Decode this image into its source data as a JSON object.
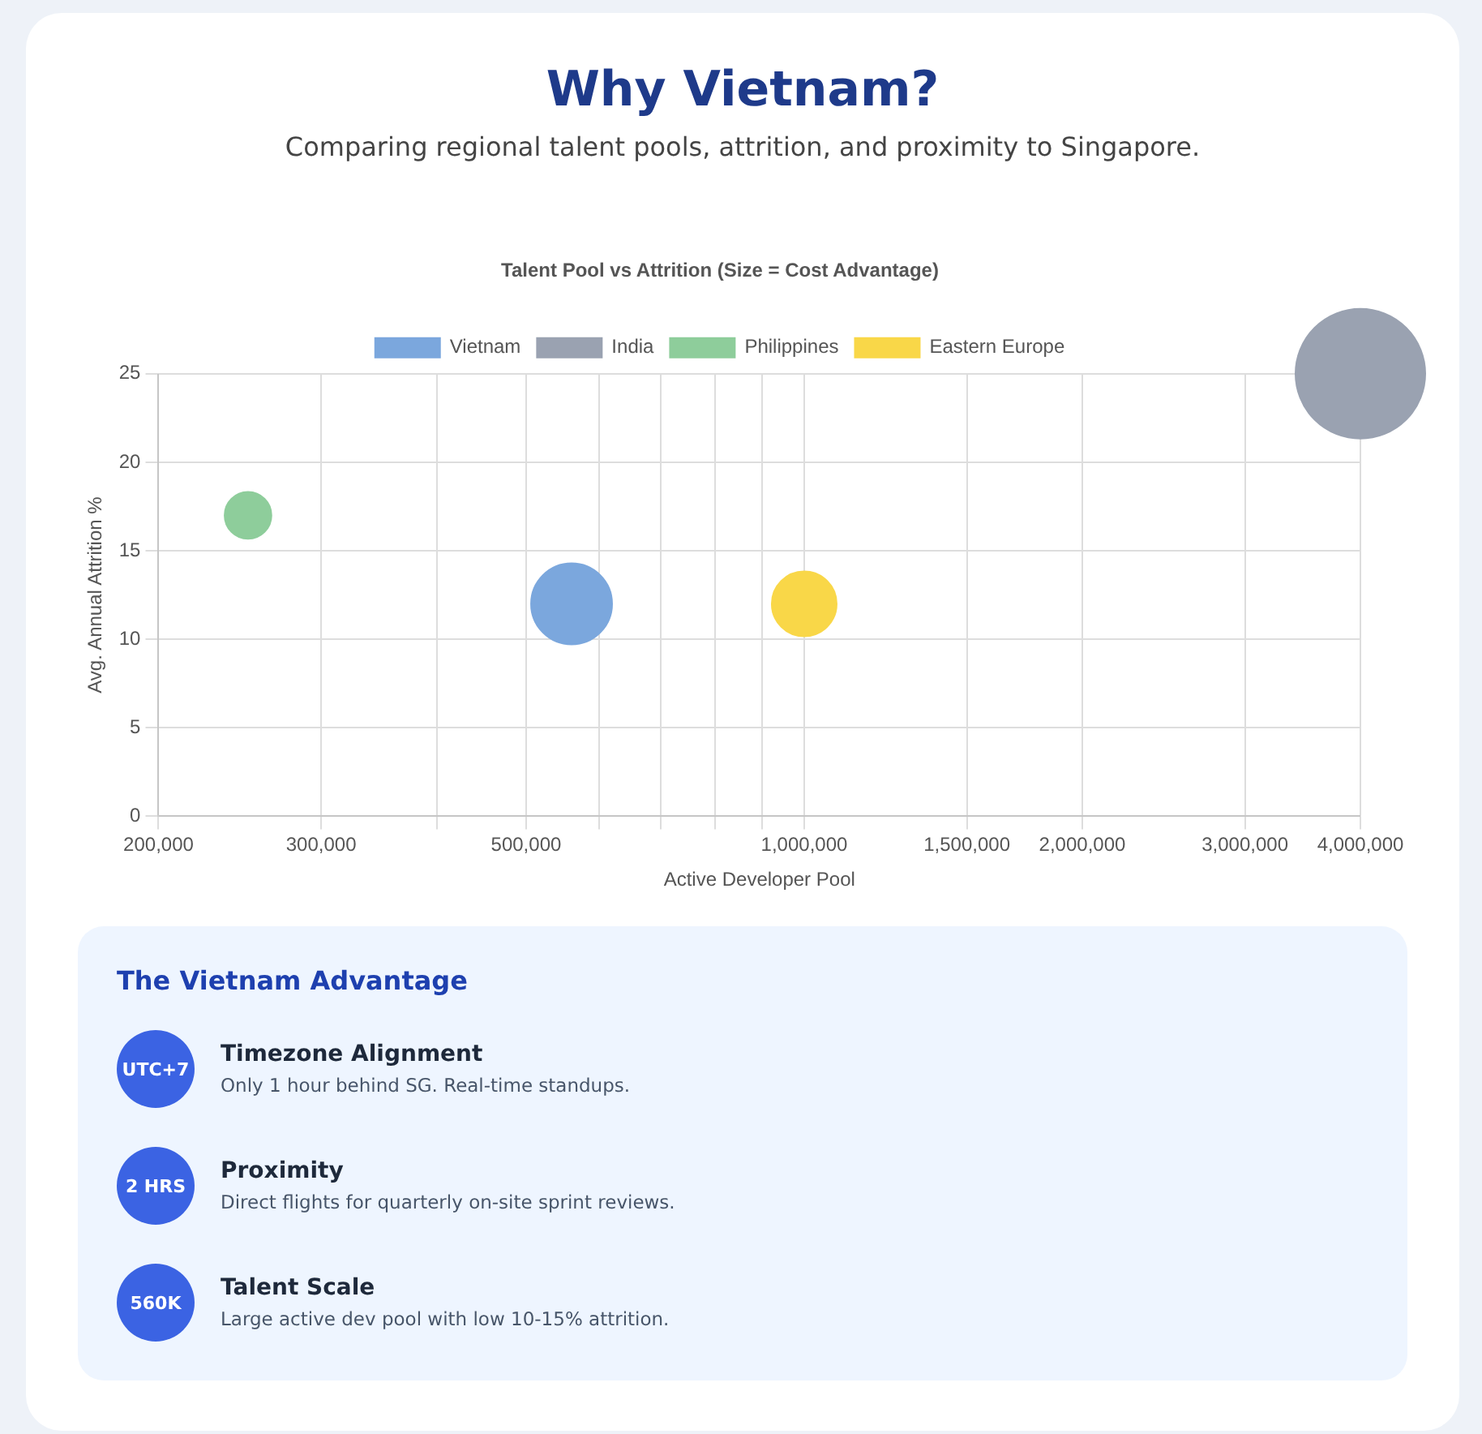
{
  "chart_data": [
    {
      "type": "other",
      "title": "Why Vietnam?",
      "subtitle": "Comparing regional talent pools, attrition, and proximity to Singapore."
    },
    {
      "type": "bubble",
      "title": "Talent Pool vs Attrition (Size = Cost Advantage)",
      "xlabel": "Active Developer Pool",
      "ylabel": "Avg. Annual Attrition %",
      "log": "x",
      "legend": "top",
      "grid": true,
      "xlim": [
        200000,
        4000000
      ],
      "xticks": [
        {
          "value": 200000,
          "label": "200,000"
        },
        {
          "value": 300000,
          "label": "300,000"
        },
        {
          "value": 400000,
          "label": null
        },
        {
          "value": 500000,
          "label": "500,000"
        },
        {
          "value": 600000,
          "label": null
        },
        {
          "value": 700000,
          "label": null
        },
        {
          "value": 800000,
          "label": null
        },
        {
          "value": 900000,
          "label": null
        },
        {
          "value": 1000000,
          "label": "1,000,000"
        },
        {
          "value": 1500000,
          "label": "1,500,000"
        },
        {
          "value": 2000000,
          "label": "2,000,000"
        },
        {
          "value": 3000000,
          "label": "3,000,000"
        },
        {
          "value": 4000000,
          "label": "4,000,000"
        }
      ],
      "ylim": [
        0,
        25
      ],
      "yticks": [
        0,
        5,
        10,
        15,
        20,
        25
      ],
      "series": [
        {
          "name": "Vietnam",
          "color": "#7ba7dd",
          "x": [
            560000
          ],
          "values": [
            12
          ],
          "sizes": [
            0.39
          ]
        },
        {
          "name": "India",
          "color": "#9aa2b1",
          "x": [
            4000000
          ],
          "values": [
            25
          ],
          "sizes": [
            1
          ]
        },
        {
          "name": "Philippines",
          "color": "#8ecd9b",
          "x": [
            250000
          ],
          "values": [
            17
          ],
          "sizes": [
            0.13
          ]
        },
        {
          "name": "Eastern Europe",
          "color": "#f9d748",
          "x": [
            1000000
          ],
          "values": [
            12
          ],
          "sizes": [
            0.25
          ]
        }
      ]
    },
    {
      "type": "other",
      "title": "The Vietnam Advantage",
      "annotations": [
        "UTC+7",
        "Timezone Alignment",
        "Only 1 hour behind SG. Real-time standups.",
        "2 HRS",
        "Proximity",
        "Direct flights for quarterly on-site sprint reviews.",
        "560K",
        "Talent Scale",
        "Large active dev pool with low 10-15% attrition."
      ]
    }
  ]
}
